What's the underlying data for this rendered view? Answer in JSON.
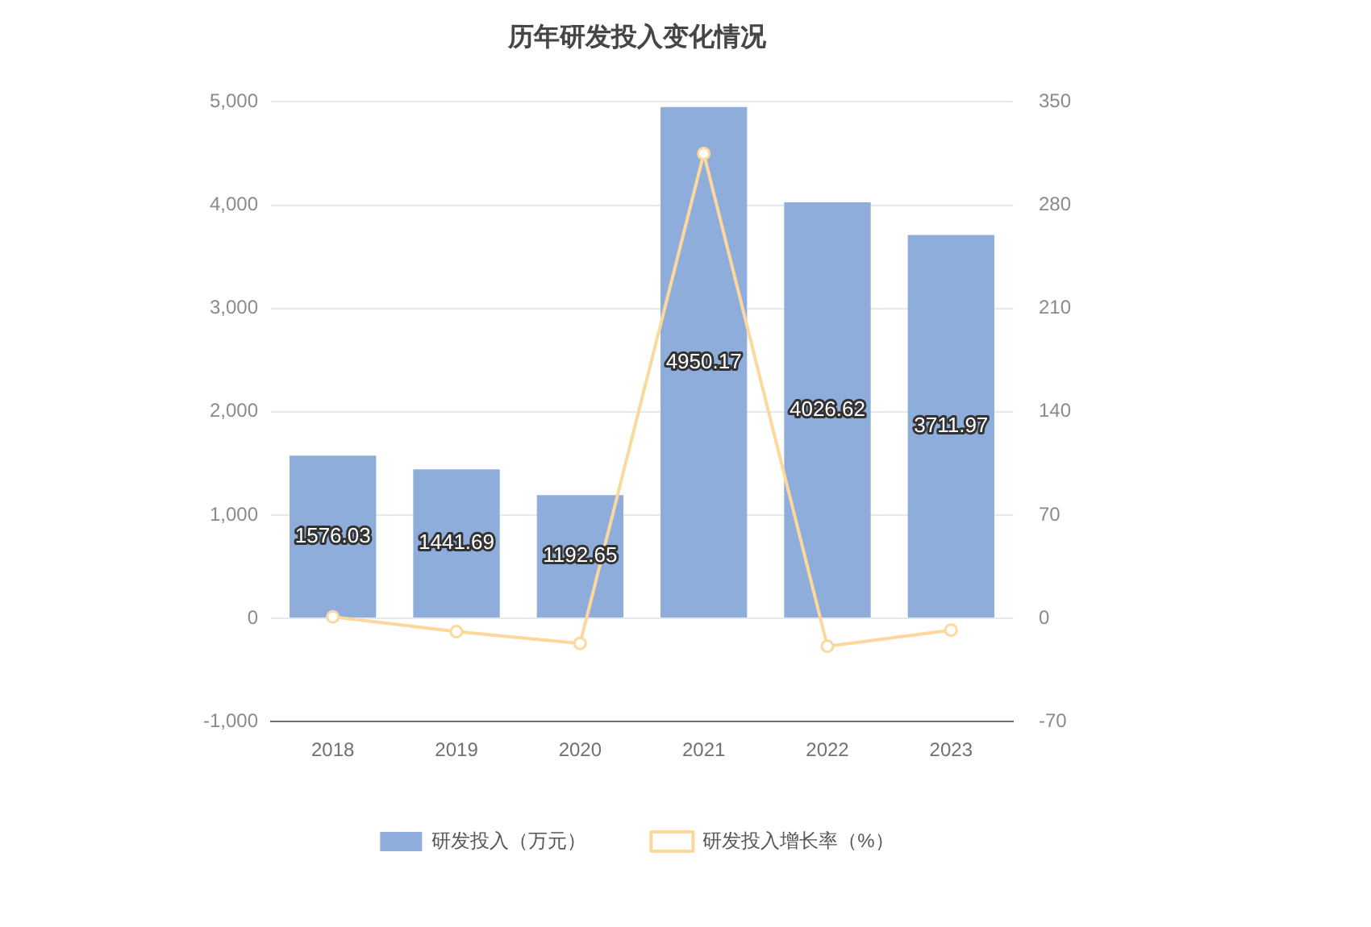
{
  "chart_data": {
    "type": "bar",
    "title": "历年研发投入变化情况",
    "categories": [
      "2018",
      "2019",
      "2020",
      "2021",
      "2022",
      "2023"
    ],
    "series": [
      {
        "name": "研发投入（万元）",
        "color": "#8eaddb",
        "values": [
          1576.03,
          1441.69,
          1192.65,
          4950.17,
          4026.62,
          3711.97
        ],
        "value_labels": [
          "1576.03",
          "1441.69",
          "1192.65",
          "4950.17",
          "4026.62",
          "3711.97"
        ]
      },
      {
        "name": "研发投入增长率（%）",
        "type": "line",
        "axis": "y2",
        "color": "#fcd89c",
        "marker": "circle",
        "values": [
          1,
          -9,
          -17,
          315,
          -19,
          -8
        ]
      }
    ],
    "ylim": [
      -1000,
      5000
    ],
    "yticks": [
      {
        "value": -1000,
        "label": "-1,000"
      },
      0,
      {
        "value": 1000,
        "label": "1,000"
      },
      {
        "value": 2000,
        "label": "2,000"
      },
      {
        "value": 3000,
        "label": "3,000"
      },
      {
        "value": 4000,
        "label": "4,000"
      },
      {
        "value": 5000,
        "label": "5,000"
      }
    ],
    "y2lim": [
      -70,
      350
    ],
    "y2ticks": [
      -70,
      0,
      70,
      140,
      210,
      280,
      350
    ],
    "grid": "y",
    "legend": "bottom"
  }
}
